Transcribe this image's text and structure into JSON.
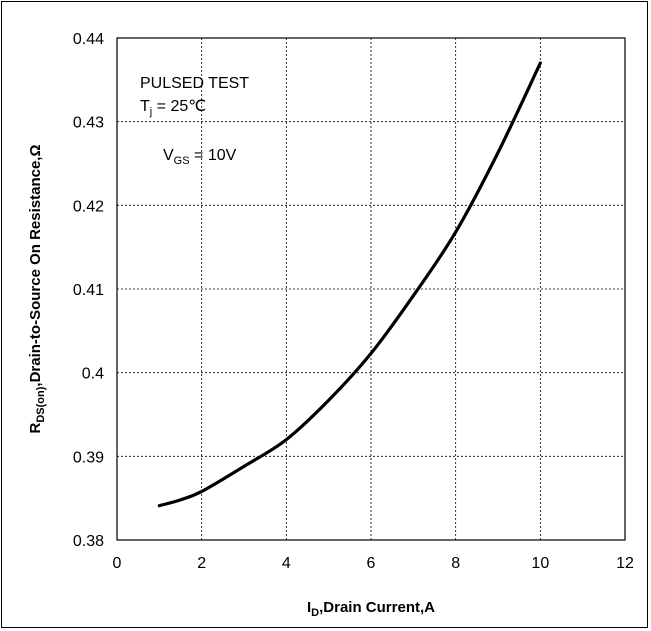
{
  "chart_data": {
    "type": "line",
    "xlabel": {
      "main": "I",
      "sub": "D",
      "rest": ",Drain Current,A"
    },
    "ylabel": {
      "main": "R",
      "sub": "DS(on)",
      "rest": ",Drain-to-Source On Resistance,Ω"
    },
    "xlim": [
      0,
      12
    ],
    "ylim": [
      0.38,
      0.44
    ],
    "x_ticks": [
      "0",
      "2",
      "4",
      "6",
      "8",
      "10",
      "12"
    ],
    "y_ticks": [
      "0.38",
      "0.39",
      "0.4",
      "0.41",
      "0.42",
      "0.43",
      "0.44"
    ],
    "grid": true,
    "annotations": {
      "line1": "PULSED TEST",
      "line2": {
        "main": "T",
        "sub": "j",
        "rest": " = 25℃"
      },
      "line3": {
        "main": "V",
        "sub": "GS",
        "rest": " = 10V"
      }
    },
    "series": [
      {
        "color": "#000000",
        "x": [
          1.0,
          1.5,
          2.0,
          3.0,
          4.0,
          5.0,
          6.0,
          7.0,
          8.0,
          9.0,
          10.0
        ],
        "y": [
          0.3841,
          0.3848,
          0.3858,
          0.3888,
          0.392,
          0.3967,
          0.4023,
          0.4092,
          0.4168,
          0.4263,
          0.437
        ]
      }
    ]
  }
}
